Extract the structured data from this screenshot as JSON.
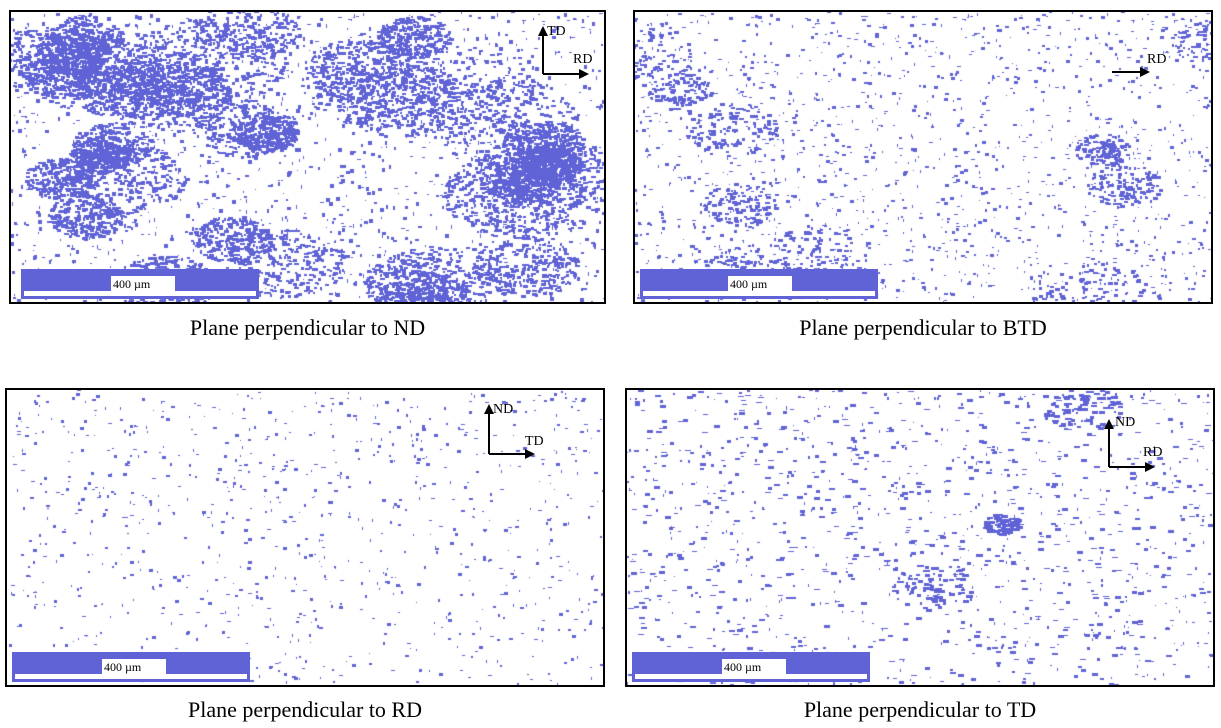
{
  "accent": "#6063d6",
  "panels": [
    {
      "caption": "Plane perpendicular to ND",
      "scale_label": "400 µm",
      "density": "high",
      "axes": {
        "up": "TD",
        "right": "RD"
      }
    },
    {
      "caption": "Plane perpendicular to BTD",
      "scale_label": "400 µm",
      "density": "medium",
      "axes": {
        "up": "",
        "right": "RD"
      }
    },
    {
      "caption": "Plane perpendicular to RD",
      "scale_label": "400 µm",
      "density": "low",
      "axes": {
        "up": "ND",
        "right": "TD"
      }
    },
    {
      "caption": "Plane perpendicular to TD",
      "scale_label": "400 µm",
      "density": "low-medium",
      "axes": {
        "up": "ND",
        "right": "RD"
      }
    }
  ]
}
